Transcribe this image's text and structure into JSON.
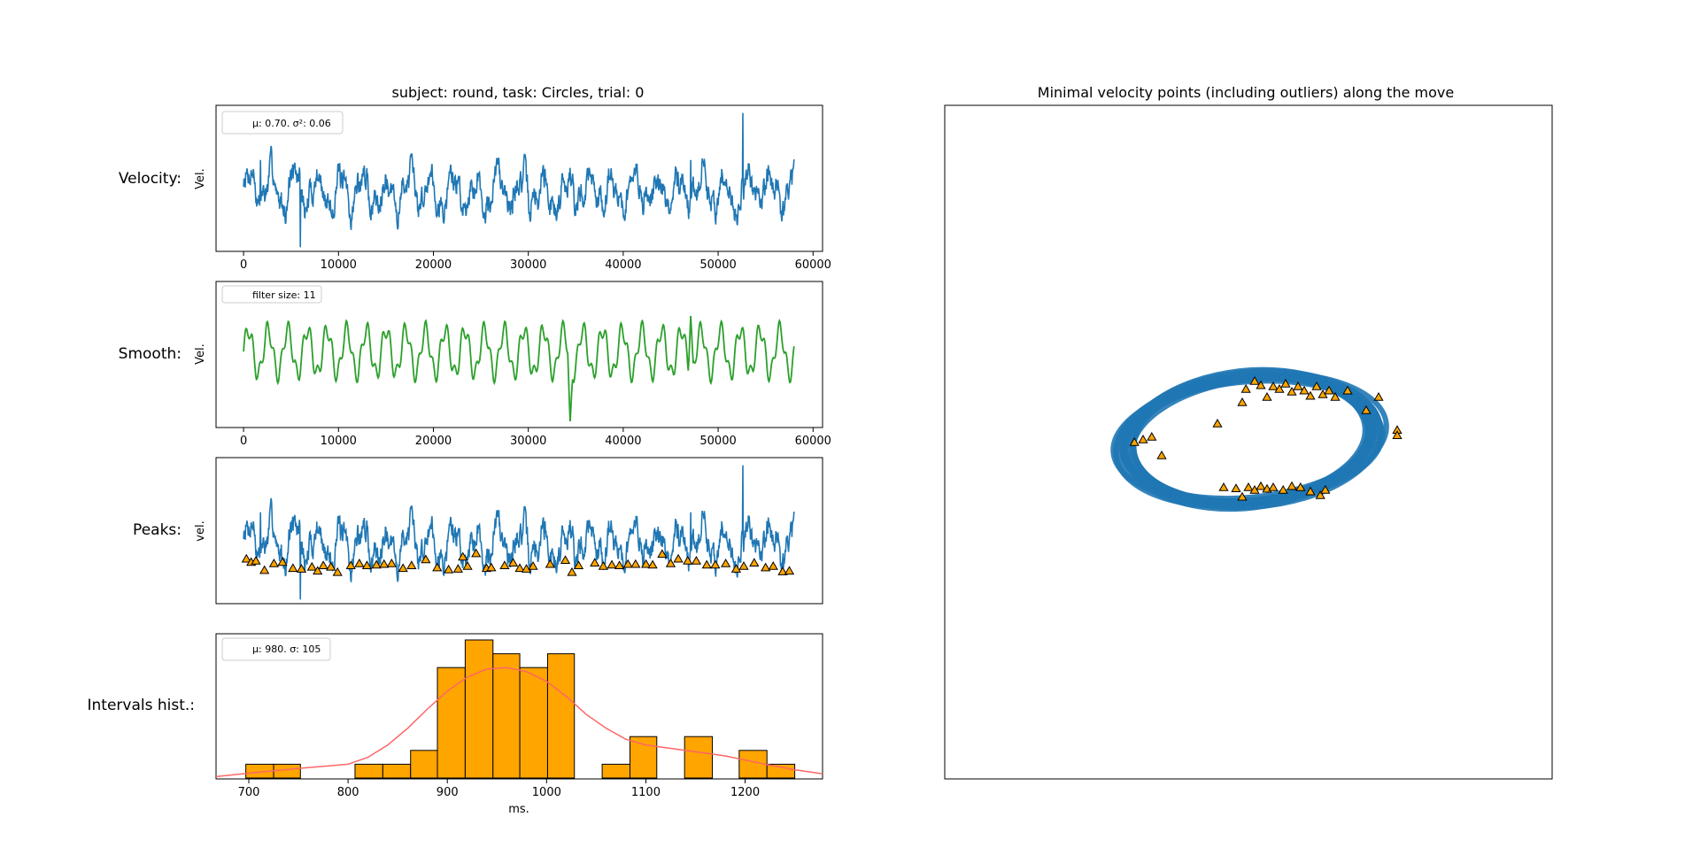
{
  "figure": {
    "left_title": "subject: round, task: Circles, trial: 0",
    "right_title": "Minimal velocity points (including outliers) along the move",
    "row_labels": [
      "Velocity:",
      "Smooth:",
      "Peaks:",
      "Intervals hist.:"
    ]
  },
  "colors": {
    "velocity": "#1f77b4",
    "smooth": "#2ca02c",
    "marker": "#ffa500",
    "hist_fill": "#ffa500",
    "fit_line": "#ff6666"
  },
  "chart_data": [
    {
      "type": "line",
      "name": "velocity",
      "ylabel": "Vel.",
      "xlim": [
        -2900,
        61000
      ],
      "xticks": [
        "0",
        "10000",
        "20000",
        "30000",
        "40000",
        "50000",
        "60000"
      ],
      "x_range": [
        0,
        58000
      ],
      "legend_text": "μ: 0.70.  σ²: 0.06",
      "mean": 0.7,
      "variance": 0.06,
      "notable_spikes": [
        {
          "x": 52600,
          "y": 1.85
        },
        {
          "x": 1800,
          "y": 1.15
        },
        {
          "x": 47100,
          "y": 1.15
        },
        {
          "x": 6000,
          "y": -0.15
        }
      ]
    },
    {
      "type": "line",
      "name": "smooth",
      "ylabel": "Vel.",
      "xlim": [
        -2900,
        61000
      ],
      "xticks": [
        "0",
        "10000",
        "20000",
        "30000",
        "40000",
        "50000",
        "60000"
      ],
      "x_range": [
        0,
        58000
      ],
      "legend_text": "filter size: 11",
      "filter_size": 11,
      "notable_extrema": [
        {
          "x": 47100,
          "y": 1.1
        },
        {
          "x": 34400,
          "y": 0.05
        }
      ]
    },
    {
      "type": "scatter",
      "name": "peaks",
      "ylabel": "vel.",
      "xlim": [
        -2900,
        61000
      ],
      "series": "velocity with minimal-velocity points",
      "minima_x": [
        300,
        800,
        1300,
        2200,
        3200,
        4100,
        5200,
        6100,
        7200,
        7800,
        8400,
        9200,
        9900,
        11300,
        12200,
        13000,
        14000,
        14800,
        15600,
        16800,
        17700,
        19200,
        20400,
        21600,
        22600,
        23100,
        23600,
        24500,
        25600,
        26100,
        27500,
        28400,
        29100,
        29800,
        30500,
        32300,
        33900,
        34600,
        35300,
        37000,
        37900,
        38800,
        39600,
        40500,
        41300,
        42400,
        43100,
        44100,
        45000,
        45800,
        46800,
        47700,
        48800,
        49700,
        50800,
        51900,
        52700,
        53800,
        55000,
        55800,
        56800,
        57500
      ],
      "minima_y": [
        0.45,
        0.4,
        0.42,
        0.28,
        0.38,
        0.4,
        0.31,
        0.3,
        0.33,
        0.27,
        0.35,
        0.33,
        0.25,
        0.35,
        0.38,
        0.35,
        0.36,
        0.37,
        0.38,
        0.31,
        0.35,
        0.44,
        0.32,
        0.29,
        0.3,
        0.48,
        0.34,
        0.53,
        0.31,
        0.32,
        0.35,
        0.39,
        0.31,
        0.3,
        0.34,
        0.37,
        0.43,
        0.25,
        0.35,
        0.39,
        0.34,
        0.36,
        0.35,
        0.37,
        0.37,
        0.37,
        0.36,
        0.52,
        0.38,
        0.45,
        0.42,
        0.42,
        0.36,
        0.36,
        0.38,
        0.3,
        0.34,
        0.39,
        0.32,
        0.34,
        0.26,
        0.27
      ]
    },
    {
      "type": "bar",
      "name": "intervals_histogram",
      "xlabel": "ms.",
      "xlim": [
        667,
        1278
      ],
      "xticks": [
        700,
        800,
        900,
        1000,
        1100,
        1200
      ],
      "legend_text": "μ: 980.  σ: 105",
      "mean": 980,
      "std": 105,
      "bin_edges": [
        697,
        725,
        752,
        780,
        807,
        835,
        863,
        890,
        918,
        946,
        973,
        1001,
        1028,
        1056,
        1084,
        1111,
        1139,
        1167,
        1194,
        1222,
        1250
      ],
      "counts": [
        1,
        1,
        0,
        0,
        1,
        1,
        2,
        8,
        10,
        9,
        8,
        9,
        0,
        1,
        3,
        0,
        3,
        0,
        2,
        1
      ],
      "fit_line": "estimated density curve",
      "fit_curve_x": [
        667,
        700,
        750,
        800,
        820,
        840,
        860,
        880,
        900,
        920,
        940,
        960,
        980,
        1000,
        1020,
        1040,
        1060,
        1080,
        1100,
        1120,
        1140,
        1160,
        1180,
        1200,
        1220,
        1250,
        1278
      ],
      "fit_curve_y": [
        0.1,
        0.35,
        0.7,
        1.0,
        1.5,
        2.4,
        3.6,
        5.0,
        6.3,
        7.3,
        7.9,
        8.0,
        7.7,
        7.0,
        5.9,
        4.6,
        3.6,
        2.8,
        2.4,
        2.2,
        2.0,
        1.8,
        1.6,
        1.3,
        1.0,
        0.6,
        0.3
      ]
    },
    {
      "type": "scatter",
      "name": "trajectory",
      "title": "Minimal velocity points (including outliers) along the move",
      "trajectory_shape": "elliptical ring (repeated circles)",
      "minima_points": [
        [
          -0.92,
          -0.05
        ],
        [
          -0.85,
          0.0
        ],
        [
          -0.78,
          0.05
        ],
        [
          -0.7,
          -0.3
        ],
        [
          -0.25,
          0.3
        ],
        [
          -0.05,
          0.7
        ],
        [
          -0.02,
          0.95
        ],
        [
          0.05,
          1.1
        ],
        [
          0.1,
          1.02
        ],
        [
          0.15,
          0.8
        ],
        [
          0.2,
          1.0
        ],
        [
          0.25,
          0.95
        ],
        [
          0.3,
          1.05
        ],
        [
          0.35,
          0.9
        ],
        [
          0.4,
          1.0
        ],
        [
          0.45,
          0.92
        ],
        [
          0.5,
          0.82
        ],
        [
          0.55,
          1.0
        ],
        [
          0.6,
          0.85
        ],
        [
          0.65,
          0.92
        ],
        [
          0.7,
          0.8
        ],
        [
          0.8,
          0.92
        ],
        [
          0.95,
          0.55
        ],
        [
          1.05,
          0.8
        ],
        [
          1.2,
          0.18
        ],
        [
          1.2,
          0.08
        ],
        [
          -0.2,
          -0.9
        ],
        [
          -0.1,
          -0.92
        ],
        [
          0.0,
          -0.9
        ],
        [
          0.05,
          -0.95
        ],
        [
          0.1,
          -0.88
        ],
        [
          0.15,
          -0.93
        ],
        [
          0.2,
          -0.9
        ],
        [
          0.28,
          -0.95
        ],
        [
          0.35,
          -0.88
        ],
        [
          0.42,
          -0.9
        ],
        [
          0.5,
          -0.98
        ],
        [
          0.58,
          -1.05
        ],
        [
          0.62,
          -0.95
        ],
        [
          -0.05,
          -1.08
        ]
      ]
    }
  ]
}
